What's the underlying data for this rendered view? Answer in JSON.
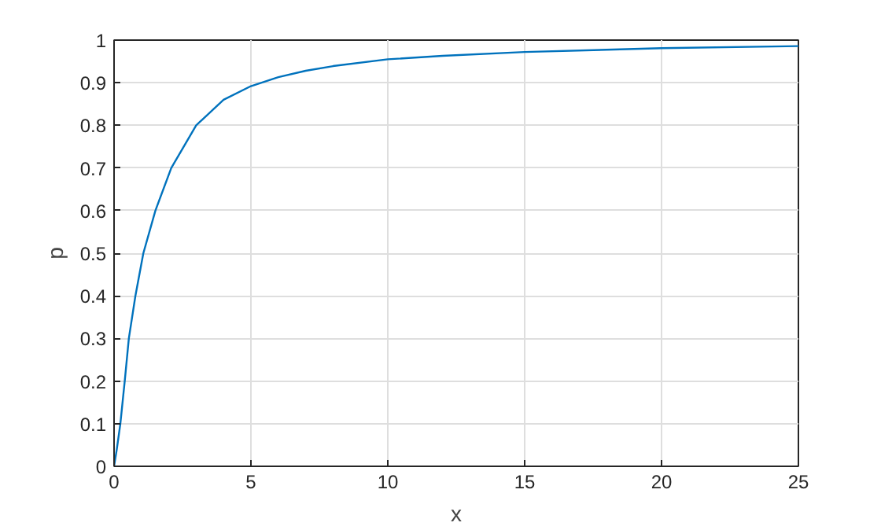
{
  "chart_data": {
    "type": "line",
    "xlabel": "x",
    "ylabel": "p",
    "x": [
      0,
      0.1,
      0.23,
      0.39,
      0.54,
      0.78,
      1.07,
      1.51,
      2.09,
      3.0,
      4.0,
      5.0,
      6.0,
      7.0,
      8.0,
      10.0,
      12.0,
      15.0,
      20.0,
      25.0
    ],
    "series": [
      {
        "color": "#0072bd",
        "values": [
          0,
          0.04,
          0.1,
          0.2,
          0.3,
          0.4,
          0.5,
          0.6,
          0.7,
          0.8,
          0.86,
          0.892,
          0.913,
          0.928,
          0.939,
          0.955,
          0.963,
          0.972,
          0.981,
          0.986
        ]
      }
    ],
    "xlim": [
      0,
      25
    ],
    "ylim": [
      0,
      1
    ],
    "xticks": [
      0,
      5,
      10,
      15,
      20,
      25
    ],
    "yticks": [
      0,
      0.1,
      0.2,
      0.3,
      0.4,
      0.5,
      0.6,
      0.7,
      0.8,
      0.9,
      1
    ],
    "grid": true,
    "marker": "none",
    "line_style": "solid"
  }
}
